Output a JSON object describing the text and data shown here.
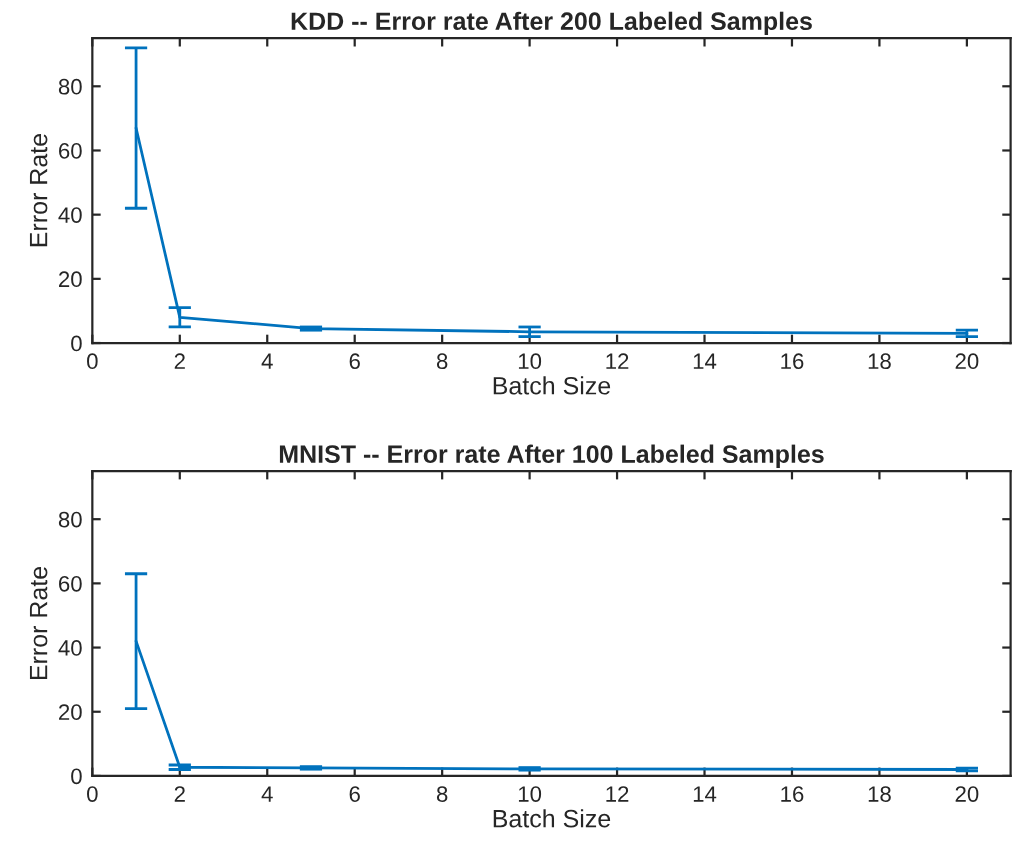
{
  "chart_data": [
    {
      "type": "line",
      "title": "KDD -- Error rate After 200 Labeled Samples",
      "xlabel": "Batch Size",
      "ylabel": "Error Rate",
      "x": [
        1,
        2,
        5,
        10,
        20
      ],
      "series": [
        {
          "color": "#0072bd",
          "values": [
            67,
            8,
            4.5,
            3.5,
            3
          ],
          "errors": [
            25,
            3,
            0.5,
            1.5,
            1
          ]
        }
      ],
      "xlim": [
        0,
        21
      ],
      "ylim": [
        0,
        95
      ],
      "xticks": [
        0,
        2,
        4,
        6,
        8,
        10,
        12,
        14,
        16,
        18,
        20
      ],
      "yticks": [
        0,
        20,
        40,
        60,
        80
      ],
      "grid": false,
      "marker": "none",
      "line_style": "solid"
    },
    {
      "type": "line",
      "title": "MNIST -- Error rate After 100 Labeled Samples",
      "xlabel": "Batch Size",
      "ylabel": "Error Rate",
      "x": [
        1,
        2,
        5,
        10,
        20
      ],
      "series": [
        {
          "color": "#0072bd",
          "values": [
            42,
            2.7,
            2.5,
            2.2,
            2
          ],
          "errors": [
            21,
            0.7,
            0.4,
            0.4,
            0.4
          ]
        }
      ],
      "xlim": [
        0,
        21
      ],
      "ylim": [
        0,
        95
      ],
      "xticks": [
        0,
        2,
        4,
        6,
        8,
        10,
        12,
        14,
        16,
        18,
        20
      ],
      "yticks": [
        0,
        20,
        40,
        60,
        80
      ],
      "grid": false,
      "marker": "none",
      "line_style": "solid"
    }
  ]
}
